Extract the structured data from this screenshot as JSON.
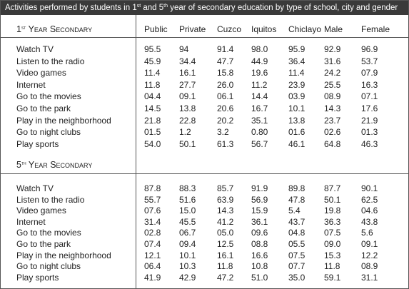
{
  "title": [
    "Activities performed by students in 1",
    "st",
    " and 5",
    "th",
    " year of secondary education by type of school, city and gender"
  ],
  "columns": [
    "Public",
    "Private",
    "Cuzco",
    "Iquitos",
    "Chiclayo",
    "Male",
    "Female"
  ],
  "sections": [
    {
      "label": [
        "1",
        "st",
        " Year Secondary"
      ],
      "rows": [
        {
          "activity": "Watch TV",
          "values": [
            "95.5",
            "94",
            "91.4",
            "98.0",
            "95.9",
            "92.9",
            "96.9"
          ]
        },
        {
          "activity": "Listen to the radio",
          "values": [
            "45.9",
            "34.4",
            "47.7",
            "44.9",
            "36.4",
            "31.6",
            "53.7"
          ]
        },
        {
          "activity": "Video games",
          "values": [
            "11.4",
            "16.1",
            "15.8",
            "19.6",
            "11.4",
            "24.2",
            "07.9"
          ]
        },
        {
          "activity": "Internet",
          "values": [
            "11.8",
            "27.7",
            "26.0",
            "11.2",
            "23.9",
            "25.5",
            "16.3"
          ]
        },
        {
          "activity": "Go to the movies",
          "values": [
            "04.4",
            "09.1",
            "06.1",
            "14.4",
            "03.9",
            "08.9",
            "07.1"
          ]
        },
        {
          "activity": "Go to the park",
          "values": [
            "14.5",
            "13.8",
            "20.6",
            "16.7",
            "10.1",
            "14.3",
            "17.6"
          ]
        },
        {
          "activity": "Play in the neighborhood",
          "values": [
            "21.8",
            "22.8",
            "20.2",
            "35.1",
            "13.8",
            "23.7",
            "21.9"
          ]
        },
        {
          "activity": "Go to night clubs",
          "values": [
            "01.5",
            "1.2",
            "3.2",
            "0.80",
            "01.6",
            "02.6",
            "01.3"
          ]
        },
        {
          "activity": "Play sports",
          "values": [
            "54.0",
            "50.1",
            "61.3",
            "56.7",
            "46.1",
            "64.8",
            "46.3"
          ]
        }
      ]
    },
    {
      "label": [
        "5",
        "th",
        " Year Secondary"
      ],
      "rows": [
        {
          "activity": "Watch TV",
          "values": [
            "87.8",
            "88.3",
            "85.7",
            "91.9",
            "89.8",
            "87.7",
            "90.1"
          ]
        },
        {
          "activity": "Listen to the radio",
          "values": [
            "55.7",
            "51.6",
            "63.9",
            "56.9",
            "47.8",
            "50.1",
            "62.5"
          ]
        },
        {
          "activity": "Video games",
          "values": [
            "07.6",
            "15.0",
            "14.3",
            "15.9",
            "5.4",
            "19.8",
            "04.6"
          ]
        },
        {
          "activity": "Internet",
          "values": [
            "31.4",
            "45.5",
            "41.2",
            "36.1",
            "43.7",
            "36.3",
            "43.8"
          ]
        },
        {
          "activity": "Go to the movies",
          "values": [
            "02.8",
            "06.7",
            "05.0",
            "09.6",
            "04.8",
            "07.5",
            "5.6"
          ]
        },
        {
          "activity": "Go to the park",
          "values": [
            "07.4",
            "09.4",
            "12.5",
            "08.8",
            "05.5",
            "09.0",
            "09.1"
          ]
        },
        {
          "activity": "Play in the neighborhood",
          "values": [
            "12.1",
            "10.1",
            "16.1",
            "16.6",
            "07.5",
            "15.3",
            "12.2"
          ]
        },
        {
          "activity": "Go to night clubs",
          "values": [
            "06.4",
            "10.3",
            "11.8",
            "10.8",
            "07.7",
            "11.8",
            "08.9"
          ]
        },
        {
          "activity": "Play sports",
          "values": [
            "41.9",
            "42.9",
            "47.2",
            "51.0",
            "35.0",
            "59.1",
            "31.1"
          ]
        }
      ]
    }
  ]
}
